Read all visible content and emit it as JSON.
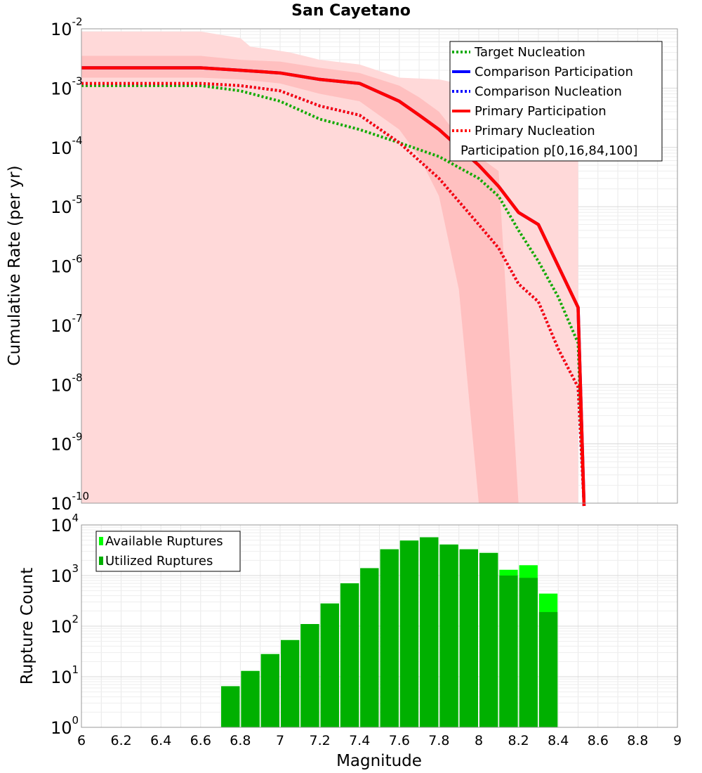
{
  "figure": {
    "title": "San Cayetano"
  },
  "chart_data": [
    {
      "type": "line",
      "title": "San Cayetano",
      "xlabel": "",
      "ylabel": "Cumulative Rate (per yr)",
      "xlim": [
        6,
        9
      ],
      "ylim": [
        1e-10,
        0.01
      ],
      "yscale": "log",
      "grid": true,
      "legend_position": "top-right",
      "y_ticks": [
        {
          "base": "10",
          "exp": "-2",
          "value": 0.01
        },
        {
          "base": "10",
          "exp": "-3",
          "value": 0.001
        },
        {
          "base": "10",
          "exp": "-4",
          "value": 0.0001
        },
        {
          "base": "10",
          "exp": "-5",
          "value": 1e-05
        },
        {
          "base": "10",
          "exp": "-6",
          "value": 1e-06
        },
        {
          "base": "10",
          "exp": "-7",
          "value": 1e-07
        },
        {
          "base": "10",
          "exp": "-8",
          "value": 1e-08
        },
        {
          "base": "10",
          "exp": "-9",
          "value": 1e-09
        },
        {
          "base": "10",
          "exp": "-10",
          "value": 1e-10
        }
      ],
      "series": [
        {
          "name": "Target Nucleation",
          "color": "#11aa00",
          "style": "dotted",
          "x": [
            6.0,
            6.6,
            6.8,
            7.0,
            7.2,
            7.4,
            7.6,
            7.8,
            8.0,
            8.1,
            8.2,
            8.3,
            8.4,
            8.5,
            8.53
          ],
          "y": [
            0.0011,
            0.0011,
            0.0009,
            0.0006,
            0.0003,
            0.0002,
            0.00012,
            7e-05,
            3e-05,
            1.5e-05,
            4e-06,
            1.2e-06,
            3e-07,
            5e-08,
            1e-11
          ]
        },
        {
          "name": "Comparison Participation",
          "color": "#0000ff",
          "style": "solid",
          "x": [
            6.0,
            6.6,
            6.8,
            6.9,
            7.0,
            7.2,
            7.4,
            7.6,
            7.7,
            7.8,
            8.0,
            8.1,
            8.2,
            8.3,
            8.4,
            8.5,
            8.53
          ],
          "y": [
            0.0022,
            0.0022,
            0.002,
            0.0019,
            0.0018,
            0.0014,
            0.0012,
            0.0006,
            0.00035,
            0.0002,
            5e-05,
            2.2e-05,
            8e-06,
            5e-06,
            1e-06,
            2e-07,
            1e-11
          ]
        },
        {
          "name": "Comparison Nucleation",
          "color": "#0000ff",
          "style": "dotted",
          "x": [
            6.0,
            6.6,
            6.8,
            7.0,
            7.2,
            7.4,
            7.6,
            7.8,
            8.0,
            8.1,
            8.2,
            8.3,
            8.4,
            8.5,
            8.53
          ],
          "y": [
            0.0012,
            0.0012,
            0.0011,
            0.0009,
            0.0005,
            0.00035,
            0.00012,
            3e-05,
            5e-06,
            2e-06,
            5e-07,
            2.5e-07,
            4e-08,
            9e-09,
            1e-11
          ]
        },
        {
          "name": "Primary Participation",
          "color": "#ff0000",
          "style": "solid",
          "x": [
            6.0,
            6.6,
            6.8,
            6.9,
            7.0,
            7.2,
            7.4,
            7.6,
            7.7,
            7.8,
            8.0,
            8.1,
            8.2,
            8.3,
            8.4,
            8.5,
            8.53
          ],
          "y": [
            0.0022,
            0.0022,
            0.002,
            0.0019,
            0.0018,
            0.0014,
            0.0012,
            0.0006,
            0.00035,
            0.0002,
            5e-05,
            2.2e-05,
            8e-06,
            5e-06,
            1e-06,
            2e-07,
            1e-11
          ]
        },
        {
          "name": "Primary Nucleation",
          "color": "#ff0000",
          "style": "dotted",
          "x": [
            6.0,
            6.6,
            6.8,
            7.0,
            7.2,
            7.4,
            7.6,
            7.8,
            8.0,
            8.1,
            8.2,
            8.3,
            8.4,
            8.5,
            8.53
          ],
          "y": [
            0.0012,
            0.0012,
            0.0011,
            0.0009,
            0.0005,
            0.00035,
            0.00012,
            3e-05,
            5e-06,
            2e-06,
            5e-07,
            2.5e-07,
            4e-08,
            9e-09,
            1e-11
          ]
        }
      ],
      "bands": [
        {
          "name": "Participation p[0,16,84,100]",
          "range": "p[0,100]",
          "color": "#ffd9d9",
          "x": [
            6.0,
            6.6,
            6.8,
            6.85,
            6.95,
            7.05,
            7.2,
            7.4,
            7.6,
            7.8,
            7.9,
            8.0,
            8.1,
            8.2,
            8.3,
            8.4,
            8.5
          ],
          "low": [
            1e-10,
            1e-10,
            1e-10,
            1e-10,
            1e-10,
            1e-10,
            1e-10,
            1e-10,
            1e-10,
            1e-10,
            1e-10,
            1e-10,
            1e-10,
            1e-10,
            1e-10,
            1e-10,
            1e-10
          ],
          "high": [
            0.009,
            0.009,
            0.007,
            0.005,
            0.0045,
            0.004,
            0.003,
            0.0025,
            0.0015,
            0.0014,
            0.0012,
            0.0006,
            0.0003,
            0.0002,
            0.00015,
            0.0001,
            0.0001
          ]
        },
        {
          "name": "Participation p[0,16,84,100]",
          "range": "p[16,84]",
          "color": "#ffc0c0",
          "x": [
            6.0,
            6.6,
            6.8,
            7.0,
            7.2,
            7.4,
            7.6,
            7.7,
            7.8,
            7.9,
            8.0,
            8.1,
            8.2
          ],
          "low": [
            0.0015,
            0.0015,
            0.0014,
            0.0012,
            0.0008,
            0.0006,
            0.0002,
            7e-05,
            1.5e-05,
            4e-07,
            1e-10,
            1e-10,
            1e-10
          ],
          "high": [
            0.0035,
            0.0035,
            0.003,
            0.0028,
            0.0022,
            0.0018,
            0.0011,
            0.0007,
            0.0004,
            0.00015,
            7e-05,
            4e-05,
            1e-10
          ]
        }
      ],
      "legend": [
        {
          "label": "Target Nucleation",
          "color": "#11aa00",
          "style": "dotted"
        },
        {
          "label": "Comparison Participation",
          "color": "#0000ff",
          "style": "solid"
        },
        {
          "label": "Comparison Nucleation",
          "color": "#0000ff",
          "style": "dotted"
        },
        {
          "label": "Primary Participation",
          "color": "#ff0000",
          "style": "solid"
        },
        {
          "label": "Primary Nucleation",
          "color": "#ff0000",
          "style": "dotted"
        },
        {
          "label": "Participation p[0,16,84,100]",
          "color": "",
          "style": "none"
        }
      ]
    },
    {
      "type": "bar",
      "title": "",
      "xlabel": "Magnitude",
      "ylabel": "Rupture Count",
      "xlim": [
        6,
        9
      ],
      "ylim": [
        1,
        10000
      ],
      "yscale": "log",
      "grid": true,
      "legend_position": "top-left",
      "x_ticks": [
        "6",
        "6.2",
        "6.4",
        "6.6",
        "6.8",
        "7",
        "7.2",
        "7.4",
        "7.6",
        "7.8",
        "8",
        "8.2",
        "8.4",
        "8.6",
        "8.8",
        "9"
      ],
      "y_ticks": [
        {
          "base": "10",
          "exp": "0",
          "value": 1
        },
        {
          "base": "10",
          "exp": "1",
          "value": 10
        },
        {
          "base": "10",
          "exp": "2",
          "value": 100
        },
        {
          "base": "10",
          "exp": "3",
          "value": 1000
        },
        {
          "base": "10",
          "exp": "4",
          "value": 10000
        }
      ],
      "categories": [
        6.75,
        6.85,
        6.95,
        7.05,
        7.15,
        7.25,
        7.35,
        7.45,
        7.55,
        7.65,
        7.75,
        7.85,
        7.95,
        8.05,
        8.15,
        8.25,
        8.35
      ],
      "bin_width": 0.1,
      "series": [
        {
          "name": "Available Ruptures",
          "color": "#00ff00",
          "values": [
            6.5,
            13,
            28,
            53,
            110,
            280,
            700,
            1400,
            3300,
            4900,
            5700,
            4100,
            3300,
            2800,
            1300,
            1600,
            440
          ]
        },
        {
          "name": "Utilized Ruptures",
          "color": "#00b000",
          "values": [
            6.5,
            13,
            28,
            53,
            110,
            280,
            700,
            1400,
            3300,
            4900,
            5700,
            4100,
            3300,
            2800,
            1000,
            900,
            190
          ]
        }
      ]
    }
  ]
}
